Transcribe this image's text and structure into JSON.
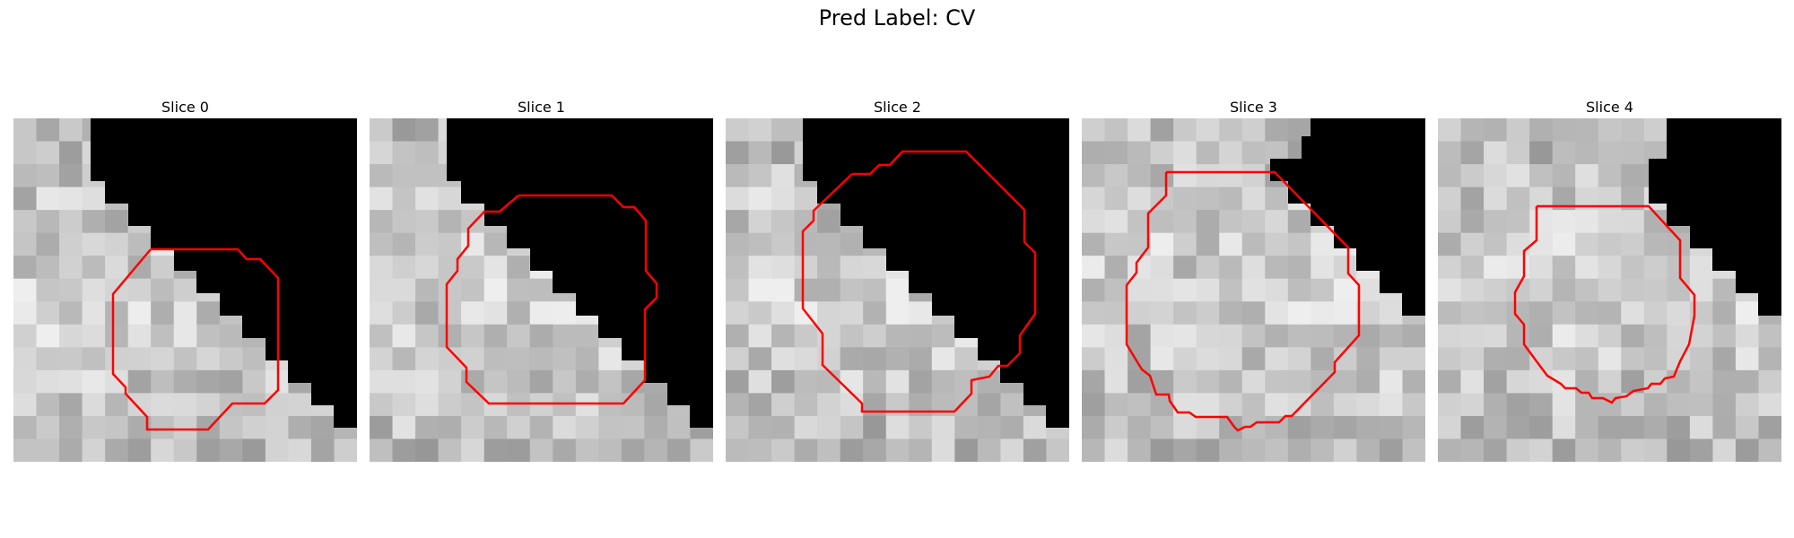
{
  "figure": {
    "title": "Pred Label: CV",
    "contour_color": "#ff0000"
  },
  "panels": [
    {
      "title": "Slice 0",
      "image": {
        "dark_corner": "top-right",
        "contour": "polygon"
      }
    },
    {
      "title": "Slice 1",
      "image": {
        "dark_corner": "top-right",
        "contour": "polygon"
      }
    },
    {
      "title": "Slice 2",
      "image": {
        "dark_corner": "top-right",
        "contour": "polygon"
      }
    },
    {
      "title": "Slice 3",
      "image": {
        "dark_corner": "top-right",
        "contour": "polygon"
      }
    },
    {
      "title": "Slice 4",
      "image": {
        "dark_corner": "top-right",
        "contour": "polygon"
      }
    }
  ]
}
